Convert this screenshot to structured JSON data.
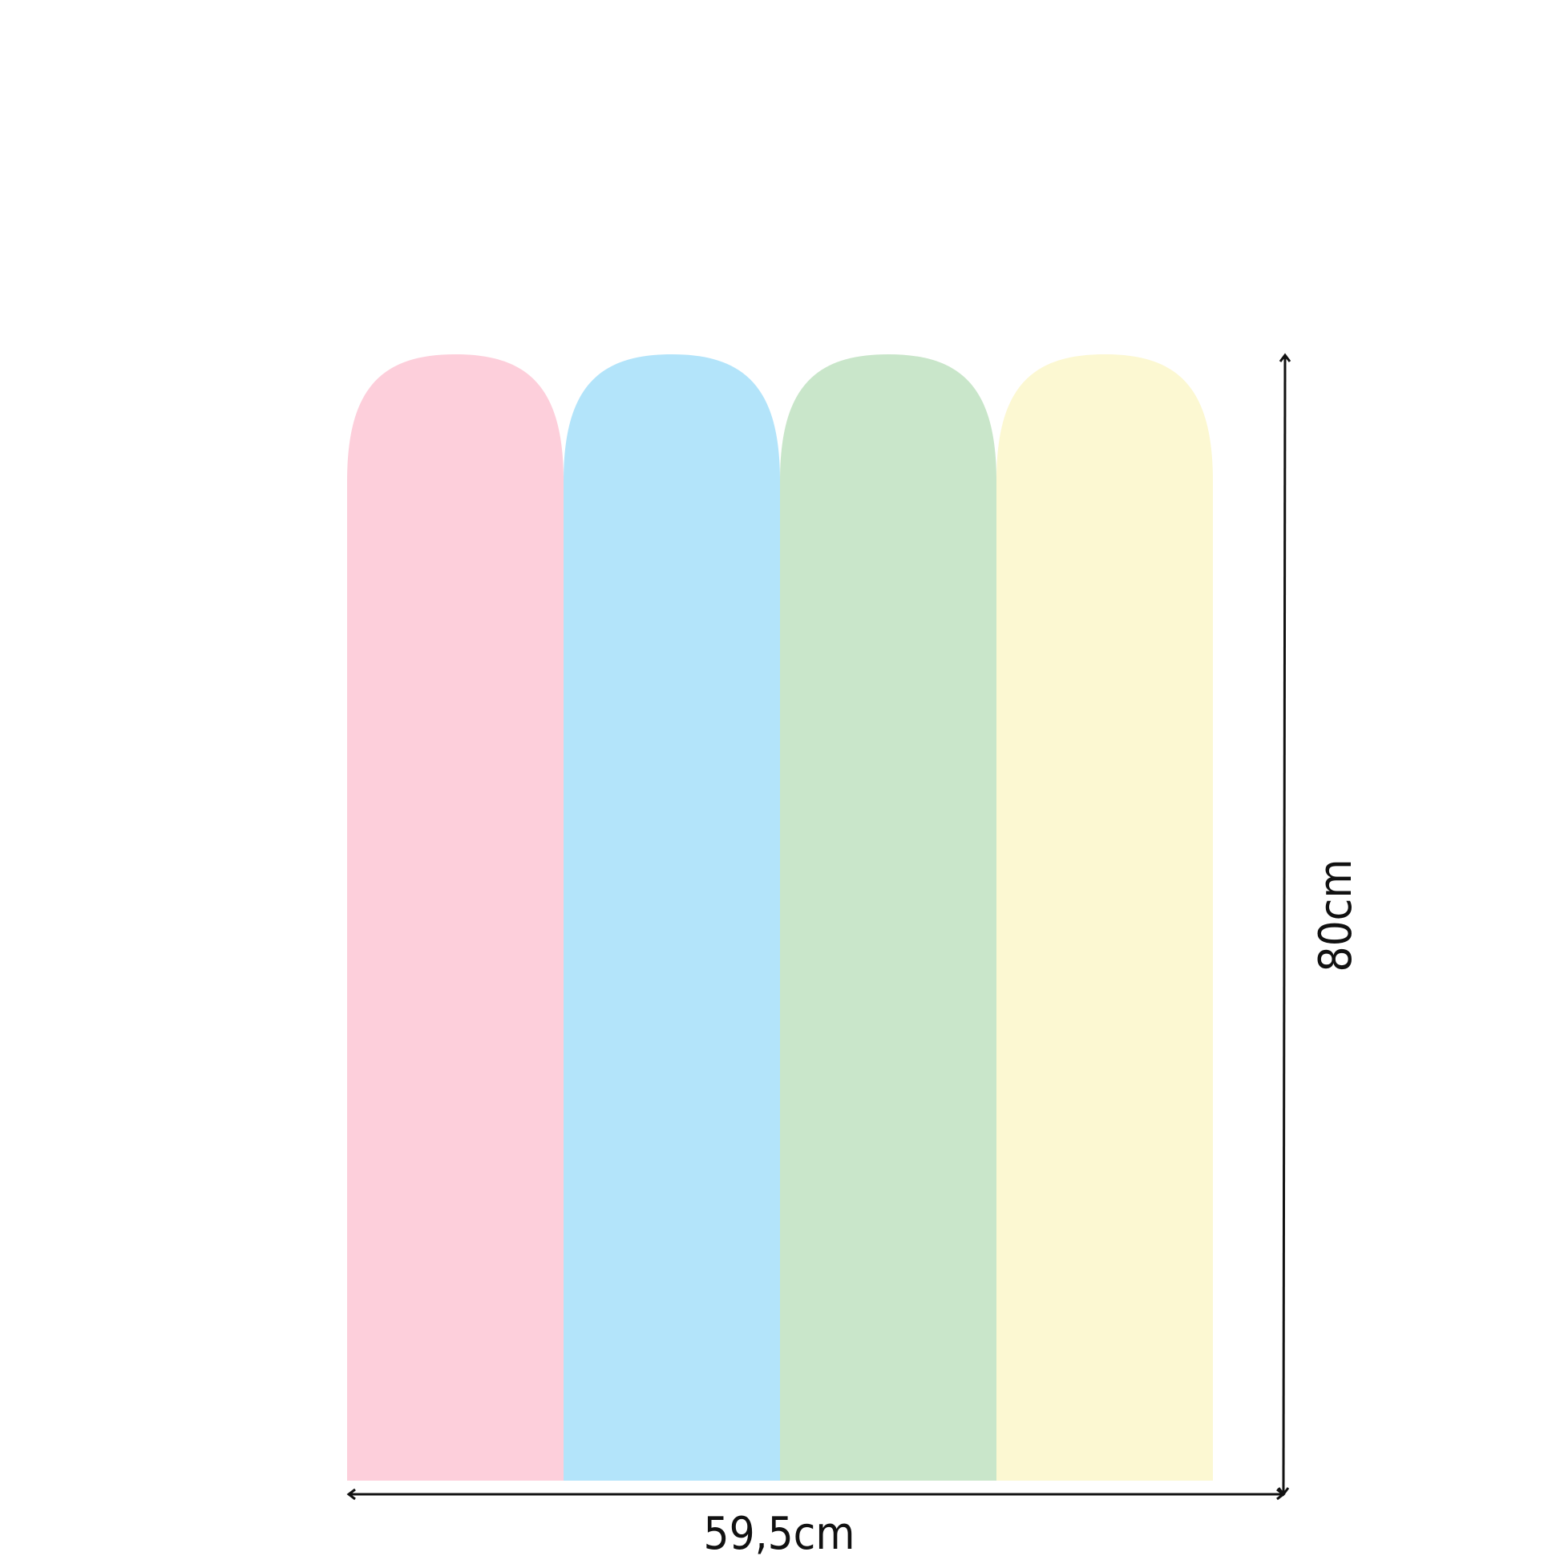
{
  "panels": [
    {
      "color": "#fdcfdb"
    },
    {
      "color": "#b3e4fa"
    },
    {
      "color": "#c9e6ca"
    },
    {
      "color": "#fcf8d2"
    }
  ],
  "dimensions": {
    "width_label": "59,5cm",
    "height_label": "80cm",
    "line_color": "#111111"
  }
}
